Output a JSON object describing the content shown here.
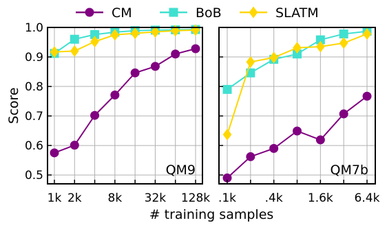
{
  "legend": [
    {
      "name": "CM",
      "color": "#800080",
      "marker": "circle"
    },
    {
      "name": "BoB",
      "color": "#40e0d0",
      "marker": "square"
    },
    {
      "name": "SLATM",
      "color": "#ffd700",
      "marker": "diamond"
    }
  ],
  "chart_data": [
    {
      "type": "line",
      "annotation": "QM9",
      "xlabel": "# training samples",
      "ylabel": "Score",
      "ylim": [
        0.47,
        1.0
      ],
      "yticks": [
        "0.5",
        "0.6",
        "0.7",
        "0.8",
        "0.9",
        "1.0"
      ],
      "ytick_values": [
        0.5,
        0.6,
        0.7,
        0.8,
        0.9,
        1.0
      ],
      "x": [
        "1k",
        "2k",
        "4k",
        "8k",
        "16k",
        "32k",
        "64k",
        "128k"
      ],
      "xticks": [
        "1k",
        "2k",
        "8k",
        "32k",
        "128k"
      ],
      "xtick_index": [
        0,
        1,
        3,
        5,
        7
      ],
      "grid": true,
      "series": [
        {
          "name": "CM",
          "values": [
            0.575,
            0.601,
            0.702,
            0.771,
            0.846,
            0.868,
            0.91,
            0.928
          ]
        },
        {
          "name": "BoB",
          "values": [
            0.912,
            0.96,
            0.976,
            0.984,
            0.989,
            0.991,
            0.992,
            0.993
          ]
        },
        {
          "name": "SLATM",
          "values": [
            0.917,
            0.92,
            0.952,
            0.975,
            0.98,
            0.985,
            0.989,
            0.991
          ]
        }
      ]
    },
    {
      "type": "line",
      "annotation": "QM7b",
      "xlabel": "# training samples",
      "ylim": [
        0.47,
        1.0
      ],
      "x": [
        ".1k",
        ".2k",
        ".4k",
        ".8k",
        "1.6k",
        "3.2k",
        "6.4k"
      ],
      "xticks": [
        ".1k",
        ".4k",
        "1.6k",
        "6.4k"
      ],
      "xtick_index": [
        0,
        2,
        4,
        6
      ],
      "grid": true,
      "series": [
        {
          "name": "CM",
          "values": [
            0.49,
            0.562,
            0.59,
            0.649,
            0.619,
            0.707,
            0.767
          ]
        },
        {
          "name": "BoB",
          "values": [
            0.79,
            0.846,
            0.892,
            0.91,
            0.958,
            0.978,
            0.987
          ]
        },
        {
          "name": "SLATM",
          "values": [
            0.637,
            0.883,
            0.898,
            0.931,
            0.935,
            0.947,
            0.978
          ]
        }
      ]
    }
  ]
}
